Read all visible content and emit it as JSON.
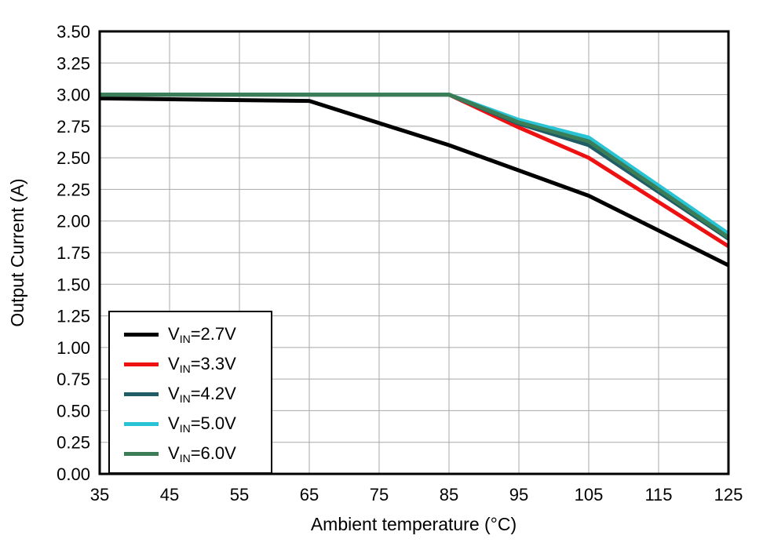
{
  "chart_data": {
    "type": "line",
    "title": "",
    "xlabel": "Ambient temperature (°C)",
    "ylabel": "Output Current (A)",
    "xlim": [
      35,
      125
    ],
    "ylim": [
      0,
      3.5
    ],
    "x_ticks": [
      35,
      45,
      55,
      65,
      75,
      85,
      95,
      105,
      115,
      125
    ],
    "y_ticks": [
      0,
      0.25,
      0.5,
      0.75,
      1,
      1.25,
      1.5,
      1.75,
      2,
      2.25,
      2.5,
      2.75,
      3,
      3.25,
      3.5
    ],
    "y_tick_labels": [
      "0.00",
      "0.25",
      "0.50",
      "0.75",
      "1.00",
      "1.25",
      "1.50",
      "1.75",
      "2.00",
      "2.25",
      "2.50",
      "2.75",
      "3.00",
      "3.25",
      "3.50"
    ],
    "grid": true,
    "grid_color": "#a8a8a8",
    "border_color": "#000000",
    "legend_position": "lower-left",
    "series": [
      {
        "name": "VIN=2.7V",
        "label_main": "V",
        "label_sub": "IN",
        "label_rest": "=2.7V",
        "color": "#000000",
        "x": [
          35,
          65,
          85,
          105,
          125
        ],
        "y": [
          2.97,
          2.95,
          2.6,
          2.2,
          1.65
        ]
      },
      {
        "name": "VIN=3.3V",
        "label_main": "V",
        "label_sub": "IN",
        "label_rest": "=3.3V",
        "color": "#ee1111",
        "x": [
          35,
          85,
          95,
          105,
          125
        ],
        "y": [
          3.0,
          3.0,
          2.74,
          2.5,
          1.8
        ]
      },
      {
        "name": "VIN=4.2V",
        "label_main": "V",
        "label_sub": "IN",
        "label_rest": "=4.2V",
        "color": "#1f5c66",
        "x": [
          35,
          85,
          95,
          105,
          125
        ],
        "y": [
          3.0,
          3.0,
          2.77,
          2.6,
          1.86
        ]
      },
      {
        "name": "VIN=5.0V",
        "label_main": "V",
        "label_sub": "IN",
        "label_rest": "=5.0V",
        "color": "#29c3d6",
        "x": [
          35,
          85,
          95,
          105,
          125
        ],
        "y": [
          3.0,
          3.0,
          2.8,
          2.66,
          1.9
        ]
      },
      {
        "name": "VIN=6.0V",
        "label_main": "V",
        "label_sub": "IN",
        "label_rest": "=6.0V",
        "color": "#3a7d56",
        "x": [
          35,
          85,
          95,
          105,
          125
        ],
        "y": [
          3.0,
          3.0,
          2.78,
          2.63,
          1.87
        ]
      }
    ]
  }
}
